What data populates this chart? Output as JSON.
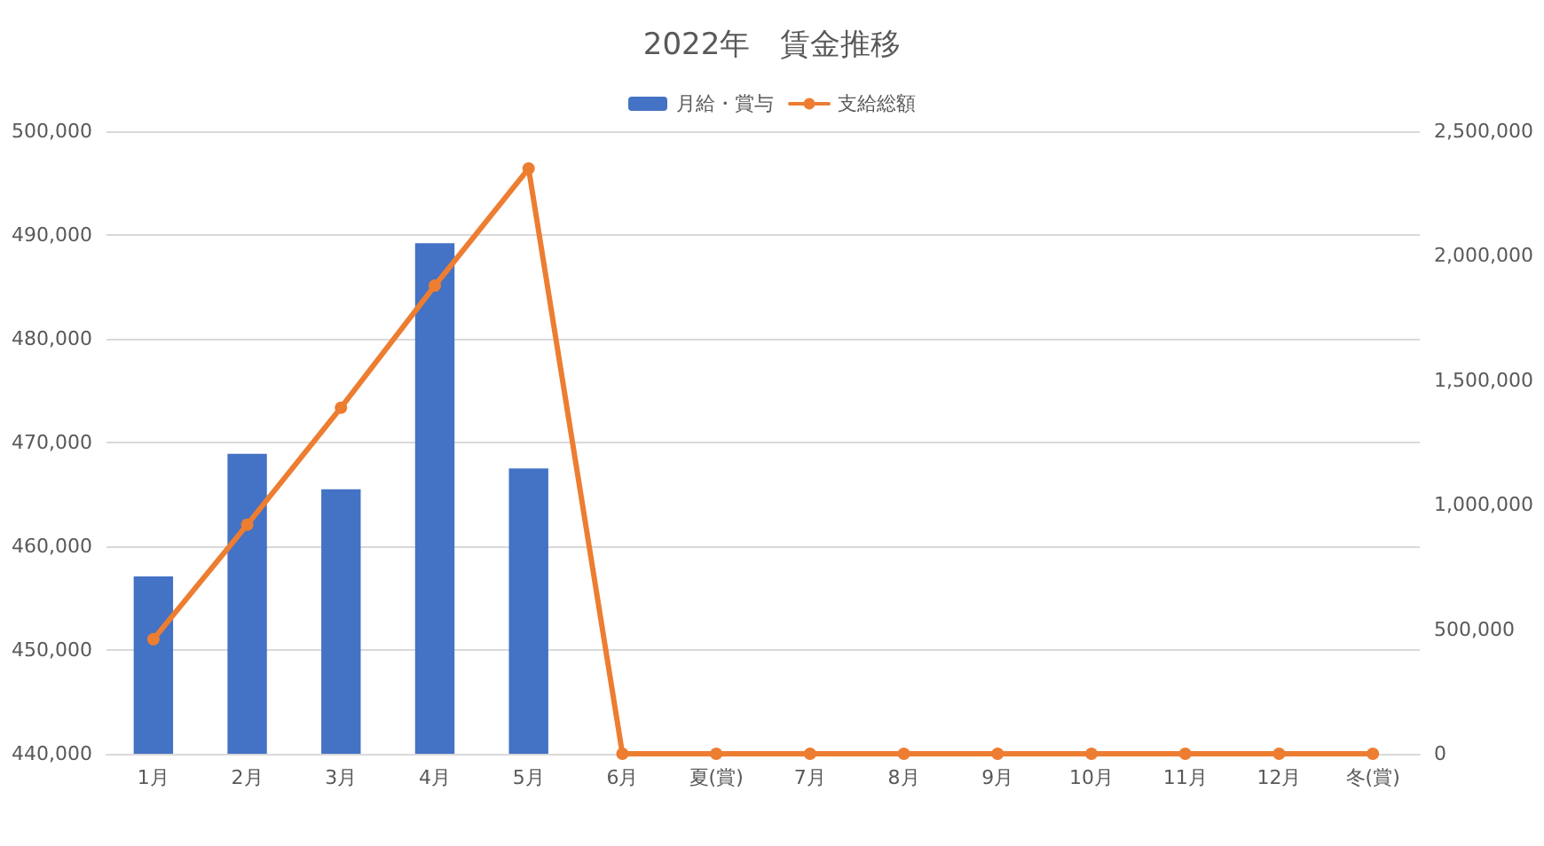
{
  "chart_data": {
    "type": "bar",
    "title": "2022年　賃金推移",
    "categories": [
      "1月",
      "2月",
      "3月",
      "4月",
      "5月",
      "6月",
      "夏(賞)",
      "7月",
      "8月",
      "9月",
      "10月",
      "11月",
      "12月",
      "冬(賞)"
    ],
    "series": [
      {
        "name": "月給・賞与",
        "color": "#4472c4",
        "values": [
          457100,
          468900,
          465500,
          489200,
          467500,
          null,
          null,
          null,
          null,
          null,
          null,
          null,
          null,
          null
        ]
      },
      {
        "name": "支給総額",
        "type": "line",
        "axis": "y2",
        "color": "#ed7d31",
        "values": [
          460000,
          920000,
          1390000,
          1880000,
          2350000,
          0,
          0,
          0,
          0,
          0,
          0,
          0,
          0,
          0
        ]
      }
    ],
    "ylim": [
      440000,
      500000
    ],
    "yticks": [
      {
        "value": 440000,
        "label": "440,000"
      },
      {
        "value": 450000,
        "label": "450,000"
      },
      {
        "value": 460000,
        "label": "460,000"
      },
      {
        "value": 470000,
        "label": "470,000"
      },
      {
        "value": 480000,
        "label": "480,000"
      },
      {
        "value": 490000,
        "label": "490,000"
      },
      {
        "value": 500000,
        "label": "500,000"
      }
    ],
    "y2lim": [
      0,
      2500000
    ],
    "y2ticks": [
      0,
      {
        "value": 500000,
        "label": "500,000"
      },
      {
        "value": 1000000,
        "label": "1,000,000"
      },
      {
        "value": 1500000,
        "label": "1,500,000"
      },
      {
        "value": 2000000,
        "label": "2,000,000"
      },
      {
        "value": 2500000,
        "label": "2,500,000"
      }
    ],
    "grid": "y",
    "legend": "top",
    "marker": "circle",
    "line_style": "solid"
  }
}
